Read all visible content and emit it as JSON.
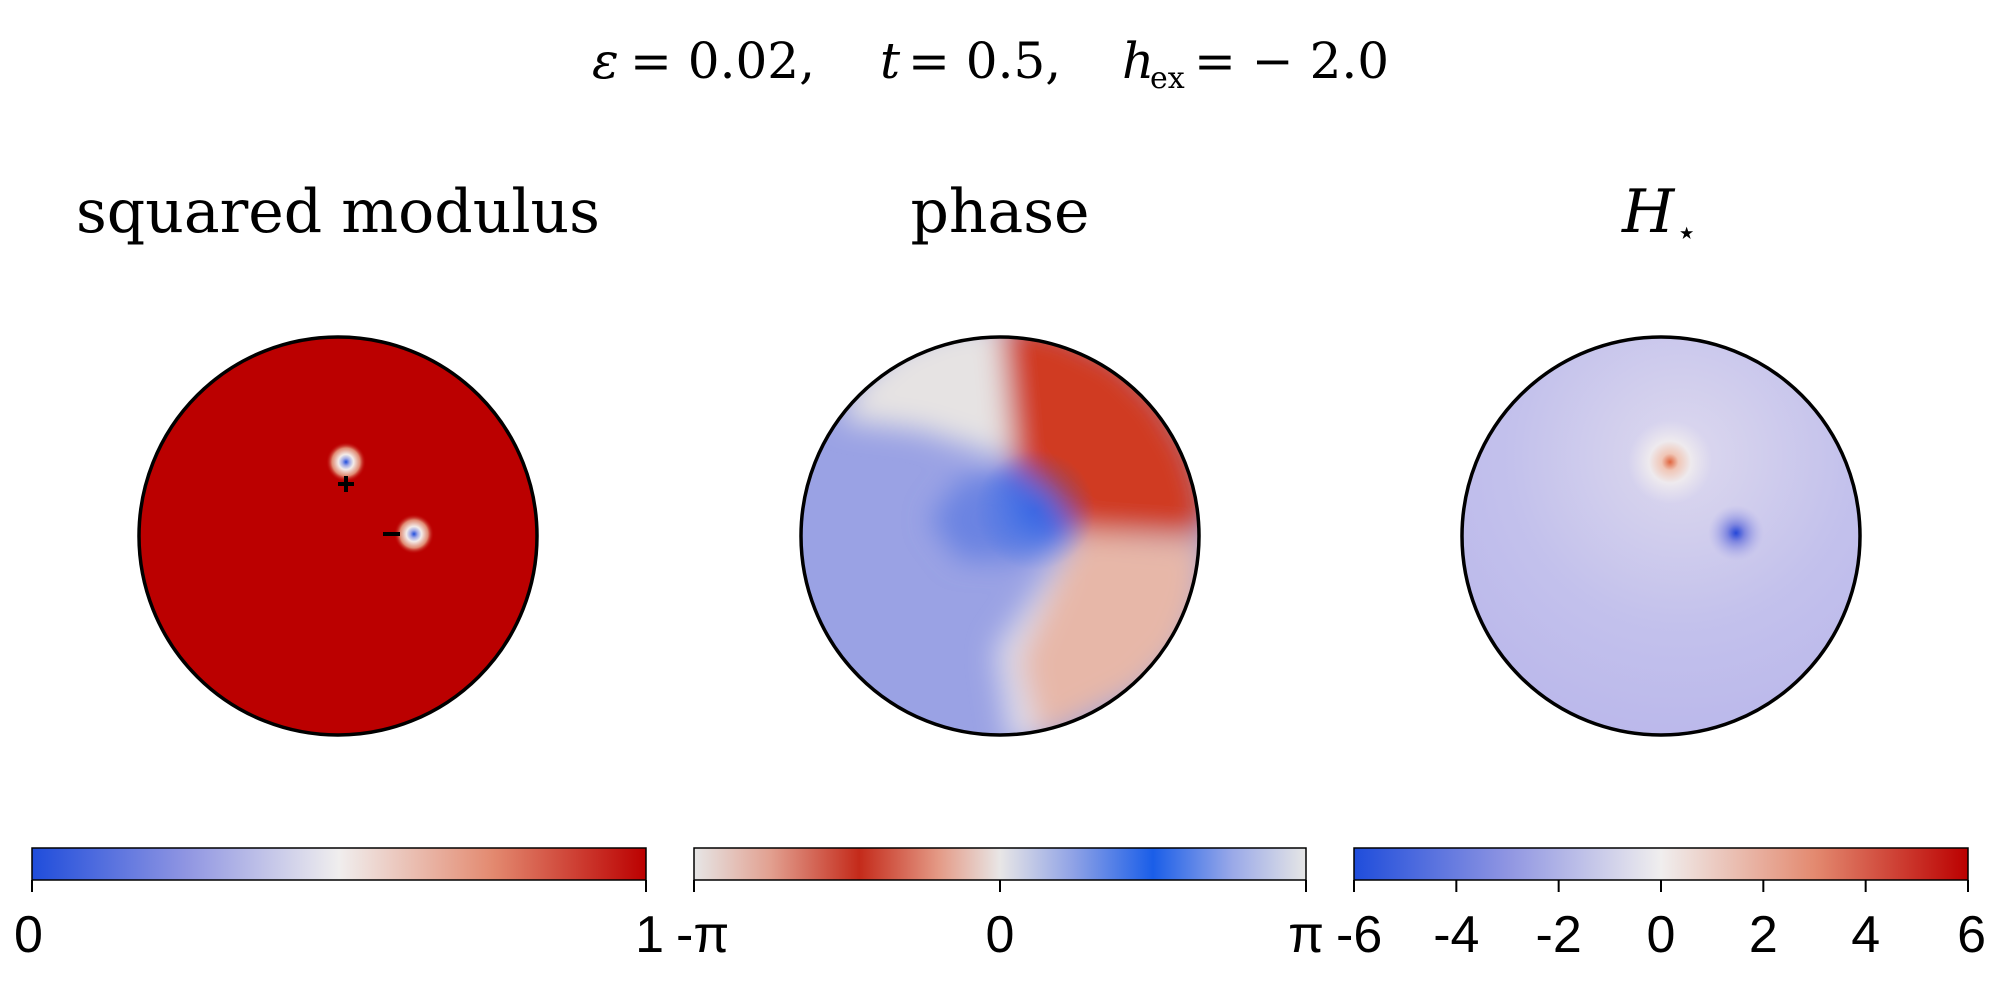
{
  "header": {
    "epsilon_symbol": "ε",
    "epsilon_value": "= 0.02,",
    "t_symbol": "t",
    "t_value": "= 0.5,",
    "h_symbol": "h",
    "h_subscript": "ex",
    "h_value": "= − 2.0"
  },
  "panels": {
    "modulus": {
      "title": "squared modulus"
    },
    "phase": {
      "title": "phase"
    },
    "hstar": {
      "title_symbol": "H",
      "title_subscript": "⋆"
    }
  },
  "chart_data": [
    {
      "type": "heatmap",
      "title": "squared modulus",
      "domain": "unit disk",
      "field": "squared modulus |u|^2",
      "colorbar": {
        "ticks": [
          "0",
          "1"
        ],
        "range": [
          0,
          1
        ],
        "colors": [
          "#1f4ddb",
          "#f0f0f0",
          "#bb0000"
        ]
      },
      "vortices": [
        {
          "sign": "+",
          "x": 0.04,
          "y": 0.37
        },
        {
          "sign": "−",
          "x": 0.38,
          "y": 0.0
        }
      ],
      "background_value": 1
    },
    {
      "type": "heatmap",
      "title": "phase",
      "domain": "unit disk",
      "field": "phase",
      "colorbar": {
        "ticks": [
          "-π",
          "0",
          "π"
        ],
        "range": [
          -3.14159,
          3.14159
        ],
        "colors": [
          "#e6e6e6",
          "#c42a1a",
          "#e6e6e6",
          "#1a5ee8",
          "#e6e6e6"
        ]
      }
    },
    {
      "type": "heatmap",
      "title": "H⋆",
      "domain": "unit disk",
      "field": "H⋆",
      "colorbar": {
        "ticks": [
          "-6",
          "-4",
          "-2",
          "0",
          "2",
          "4",
          "6"
        ],
        "range": [
          -6,
          6
        ],
        "colors": [
          "#1f4ddb",
          "#f0f0f0",
          "#bb0000"
        ]
      },
      "background_value": -1.5,
      "extrema": [
        {
          "kind": "max",
          "x": 0.04,
          "y": 0.37
        },
        {
          "kind": "min",
          "x": 0.38,
          "y": 0.0
        }
      ]
    }
  ]
}
